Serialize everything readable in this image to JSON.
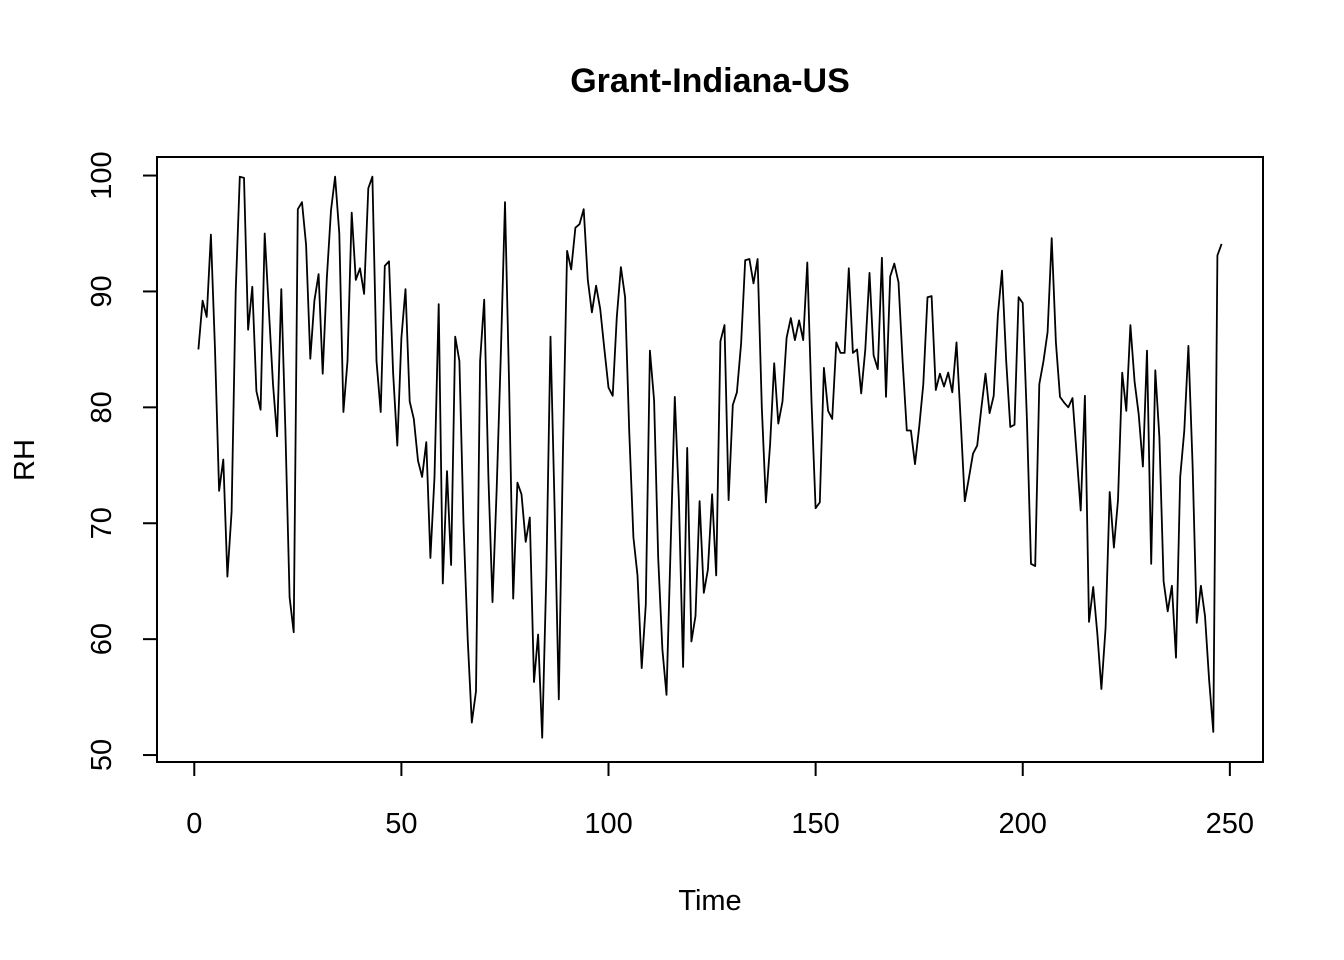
{
  "chart_data": {
    "type": "line",
    "title": "Grant-Indiana-US",
    "xlabel": "Time",
    "ylabel": "RH",
    "xlim": [
      -9,
      258
    ],
    "ylim": [
      49.4,
      101.6
    ],
    "x_ticks": [
      0,
      50,
      100,
      150,
      200,
      250
    ],
    "y_ticks": [
      50,
      60,
      70,
      80,
      90,
      100
    ],
    "grid": false,
    "legend": "none",
    "x_start": 1,
    "series": [
      {
        "values": [
          85.0,
          89.2,
          87.8,
          94.9,
          85.0,
          72.8,
          75.5,
          65.4,
          71.0,
          90.0,
          99.9,
          99.8,
          86.7,
          90.4,
          81.4,
          79.8,
          95.0,
          88.5,
          82.0,
          77.5,
          90.2,
          78.0,
          63.6,
          60.6,
          97.1,
          97.7,
          94.0,
          84.2,
          89.2,
          91.5,
          82.9,
          91.1,
          97.0,
          99.9,
          95.0,
          79.6,
          84.0,
          96.8,
          91.0,
          92.0,
          89.8,
          98.9,
          99.9,
          84.0,
          79.6,
          92.2,
          92.6,
          83.0,
          76.7,
          86.0,
          90.2,
          80.5,
          79.0,
          75.4,
          74.0,
          77.0,
          67.0,
          74.0,
          88.9,
          64.8,
          74.5,
          66.4,
          86.1,
          84.0,
          70.0,
          60.0,
          52.8,
          55.5,
          84.0,
          89.3,
          74.0,
          63.2,
          73.0,
          84.5,
          97.7,
          82.0,
          63.5,
          73.5,
          72.5,
          68.4,
          70.5,
          56.3,
          60.4,
          51.5,
          65.8,
          86.1,
          71.0,
          54.8,
          76.0,
          93.5,
          91.9,
          95.5,
          95.8,
          97.1,
          91.0,
          88.2,
          90.5,
          88.5,
          85.0,
          81.7,
          81.0,
          87.8,
          92.1,
          89.5,
          78.0,
          68.8,
          65.5,
          57.5,
          63.0,
          84.9,
          80.6,
          67.0,
          59.1,
          55.2,
          67.9,
          80.9,
          72.0,
          57.6,
          76.5,
          59.8,
          62.0,
          71.9,
          64.0,
          66.0,
          72.5,
          65.5,
          85.7,
          87.1,
          72.0,
          80.2,
          81.3,
          85.5,
          92.7,
          92.8,
          90.7,
          92.8,
          80.0,
          71.8,
          76.8,
          83.8,
          78.6,
          80.5,
          86.0,
          87.7,
          85.8,
          87.5,
          85.8,
          92.5,
          80.5,
          71.3,
          71.8,
          83.4,
          79.7,
          79.0,
          85.6,
          84.7,
          84.7,
          92.0,
          84.7,
          85.0,
          81.2,
          85.0,
          91.6,
          84.5,
          83.3,
          92.9,
          80.9,
          91.3,
          92.4,
          90.8,
          84.0,
          78.0,
          78.0,
          75.1,
          78.3,
          82.0,
          89.5,
          89.6,
          81.5,
          82.9,
          81.8,
          83.0,
          81.3,
          85.6,
          79.0,
          71.9,
          73.9,
          76.0,
          76.7,
          79.9,
          82.9,
          79.5,
          81.0,
          88.0,
          91.8,
          84.0,
          78.3,
          78.5,
          89.5,
          89.0,
          79.0,
          66.5,
          66.3,
          82.0,
          84.0,
          86.5,
          94.6,
          85.6,
          80.9,
          80.4,
          80.0,
          80.8,
          76.0,
          71.1,
          81.0,
          61.5,
          64.5,
          60.5,
          55.7,
          61.0,
          72.7,
          67.9,
          72.0,
          83.0,
          79.7,
          87.1,
          82.2,
          79.4,
          74.9,
          84.9,
          66.5,
          83.2,
          77.4,
          65.0,
          62.4,
          64.6,
          58.4,
          74.0,
          78.0,
          85.3,
          75.0,
          61.4,
          64.6,
          62.0,
          56.5,
          52.0,
          93.1,
          94.1
        ]
      }
    ]
  }
}
